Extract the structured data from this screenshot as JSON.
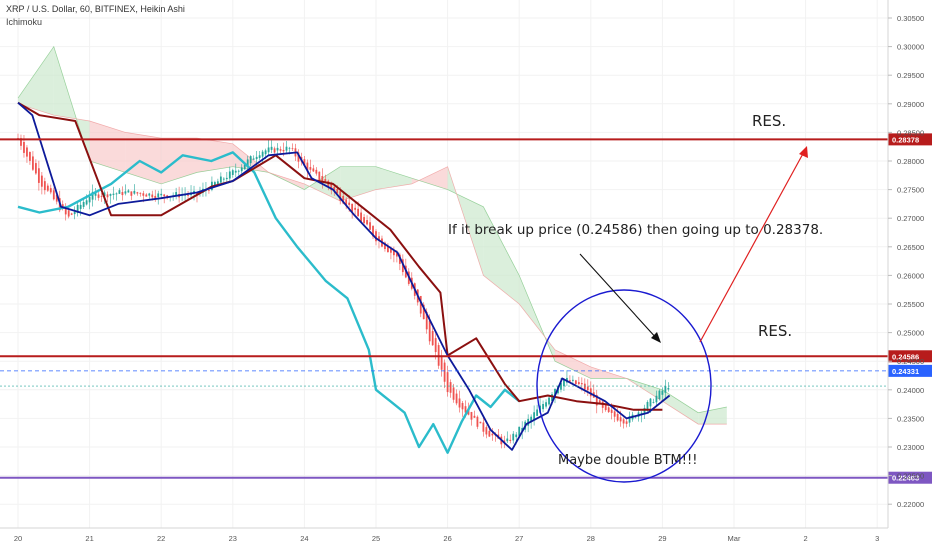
{
  "header": {
    "title": "XRP / U.S. Dollar, 60, BITFINEX, Heikin Ashi",
    "indicator": "Ichimoku"
  },
  "annotations": {
    "res_top": "RES.",
    "res_mid": "RES.",
    "condition_text": "If it break up price (0.24586) then going up to 0.28378.",
    "double_bottom_text": "Maybe double BTM!!!"
  },
  "colors": {
    "resistance_line": "#b71c1c",
    "support_line": "#7e57c2",
    "last_price_line": "#2962ff",
    "conversion_line": "#0d1a9a",
    "base_line": "#8b1010",
    "lagging_span": "#2bbccb",
    "cloud_bear": "#f7c6c6",
    "cloud_bull": "#c8e6c9",
    "candle_up": "#26a69a",
    "candle_down": "#ef5350",
    "arrow_up": "#e02020",
    "arrow_down": "#111111",
    "circle": "#1a1ad0"
  },
  "chart_data": {
    "type": "candlestick",
    "symbol": "XRP / U.S. Dollar",
    "interval": "60",
    "exchange": "BITFINEX",
    "style": "Heikin Ashi",
    "indicator": "Ichimoku",
    "y_axis_ticks": [
      "0.30500",
      "0.30000",
      "0.29500",
      "0.29000",
      "0.28500",
      "0.28000",
      "0.27500",
      "0.27000",
      "0.26500",
      "0.26000",
      "0.25500",
      "0.25000",
      "0.24500",
      "0.24000",
      "0.23500",
      "0.23000",
      "0.22500",
      "0.22000"
    ],
    "x_axis_ticks": [
      "20",
      "21",
      "22",
      "23",
      "24",
      "25",
      "26",
      "27",
      "28",
      "29",
      "Mar",
      "2",
      "3"
    ],
    "ylim": [
      0.2178,
      0.3065
    ],
    "price_labels": [
      {
        "value": 0.28378,
        "label": "0.28378",
        "kind": "resistance"
      },
      {
        "value": 0.24586,
        "label": "0.24586",
        "kind": "resistance"
      },
      {
        "value": 0.24331,
        "label": "0.24331",
        "kind": "last_price"
      },
      {
        "value": 0.22463,
        "label": "0.22463",
        "kind": "support"
      }
    ],
    "approx_price_path": {
      "x_day": [
        20.0,
        20.3,
        20.7,
        21.0,
        21.5,
        22.0,
        22.5,
        23.0,
        23.4,
        23.8,
        24.0,
        24.3,
        24.6,
        25.0,
        25.3,
        25.6,
        26.0,
        26.2,
        26.5,
        26.8,
        27.0,
        27.3,
        27.6,
        27.9,
        28.2,
        28.5,
        28.8,
        29.1
      ],
      "price": [
        0.284,
        0.2765,
        0.27,
        0.274,
        0.2745,
        0.274,
        0.2742,
        0.278,
        0.2818,
        0.2822,
        0.279,
        0.276,
        0.2725,
        0.2665,
        0.263,
        0.2545,
        0.24,
        0.237,
        0.233,
        0.2305,
        0.233,
        0.237,
        0.242,
        0.2405,
        0.236,
        0.2345,
        0.2375,
        0.241
      ]
    },
    "approx_conversion_line": {
      "x_day": [
        20.0,
        20.2,
        20.6,
        21.0,
        21.4,
        22.0,
        22.5,
        23.0,
        23.5,
        23.9,
        24.1,
        24.4,
        24.7,
        25.0,
        25.3,
        25.6,
        26.0,
        26.3,
        26.6,
        26.9,
        27.1,
        27.4,
        27.6,
        27.9,
        28.2,
        28.5,
        28.8,
        29.1
      ],
      "price": [
        0.2902,
        0.288,
        0.272,
        0.2705,
        0.2725,
        0.2735,
        0.2745,
        0.2765,
        0.281,
        0.2815,
        0.277,
        0.275,
        0.2705,
        0.2665,
        0.264,
        0.256,
        0.246,
        0.24,
        0.233,
        0.2295,
        0.234,
        0.236,
        0.242,
        0.24,
        0.238,
        0.235,
        0.236,
        0.239
      ]
    },
    "approx_base_line": {
      "x_day": [
        20.0,
        20.3,
        20.8,
        21.3,
        22.0,
        22.7,
        23.0,
        23.6,
        24.0,
        24.4,
        24.8,
        25.2,
        25.6,
        25.9,
        26.0,
        26.4,
        26.8,
        27.0,
        27.4,
        27.8,
        28.2,
        28.6,
        29.0
      ],
      "price": [
        0.2902,
        0.288,
        0.287,
        0.2705,
        0.2705,
        0.2755,
        0.2765,
        0.281,
        0.277,
        0.276,
        0.272,
        0.268,
        0.2615,
        0.257,
        0.246,
        0.249,
        0.241,
        0.238,
        0.239,
        0.238,
        0.2375,
        0.2365,
        0.2365
      ]
    },
    "approx_lagging_span": {
      "x_day": [
        20.0,
        20.3,
        20.7,
        21.0,
        21.3,
        21.7,
        22.0,
        22.3,
        22.7,
        23.0,
        23.3,
        23.6,
        23.9,
        24.1,
        24.3,
        24.6,
        24.9,
        25.0,
        25.2,
        25.4,
        25.6,
        25.8,
        26.0,
        26.2,
        26.4,
        26.6,
        26.8,
        27.0
      ],
      "price": [
        0.272,
        0.271,
        0.272,
        0.274,
        0.276,
        0.28,
        0.278,
        0.281,
        0.28,
        0.2815,
        0.278,
        0.27,
        0.265,
        0.262,
        0.259,
        0.256,
        0.247,
        0.24,
        0.238,
        0.236,
        0.23,
        0.234,
        0.229,
        0.2345,
        0.239,
        0.237,
        0.24,
        0.238
      ]
    },
    "approx_cloud": {
      "x_day": [
        20.0,
        20.5,
        21.0,
        21.5,
        22.0,
        22.5,
        23.0,
        23.5,
        24.0,
        24.5,
        25.0,
        25.5,
        26.0,
        26.5,
        27.0,
        27.5,
        28.0,
        28.5,
        29.0,
        29.5,
        29.9
      ],
      "span_a": [
        0.291,
        0.3,
        0.28,
        0.278,
        0.276,
        0.278,
        0.279,
        0.278,
        0.275,
        0.279,
        0.279,
        0.277,
        0.275,
        0.272,
        0.26,
        0.245,
        0.242,
        0.242,
        0.24,
        0.236,
        0.237
      ],
      "span_b": [
        0.29,
        0.288,
        0.287,
        0.285,
        0.284,
        0.284,
        0.283,
        0.278,
        0.276,
        0.273,
        0.275,
        0.276,
        0.279,
        0.26,
        0.255,
        0.247,
        0.244,
        0.242,
        0.238,
        0.234,
        0.234
      ]
    },
    "grid": true,
    "legend": "none"
  }
}
